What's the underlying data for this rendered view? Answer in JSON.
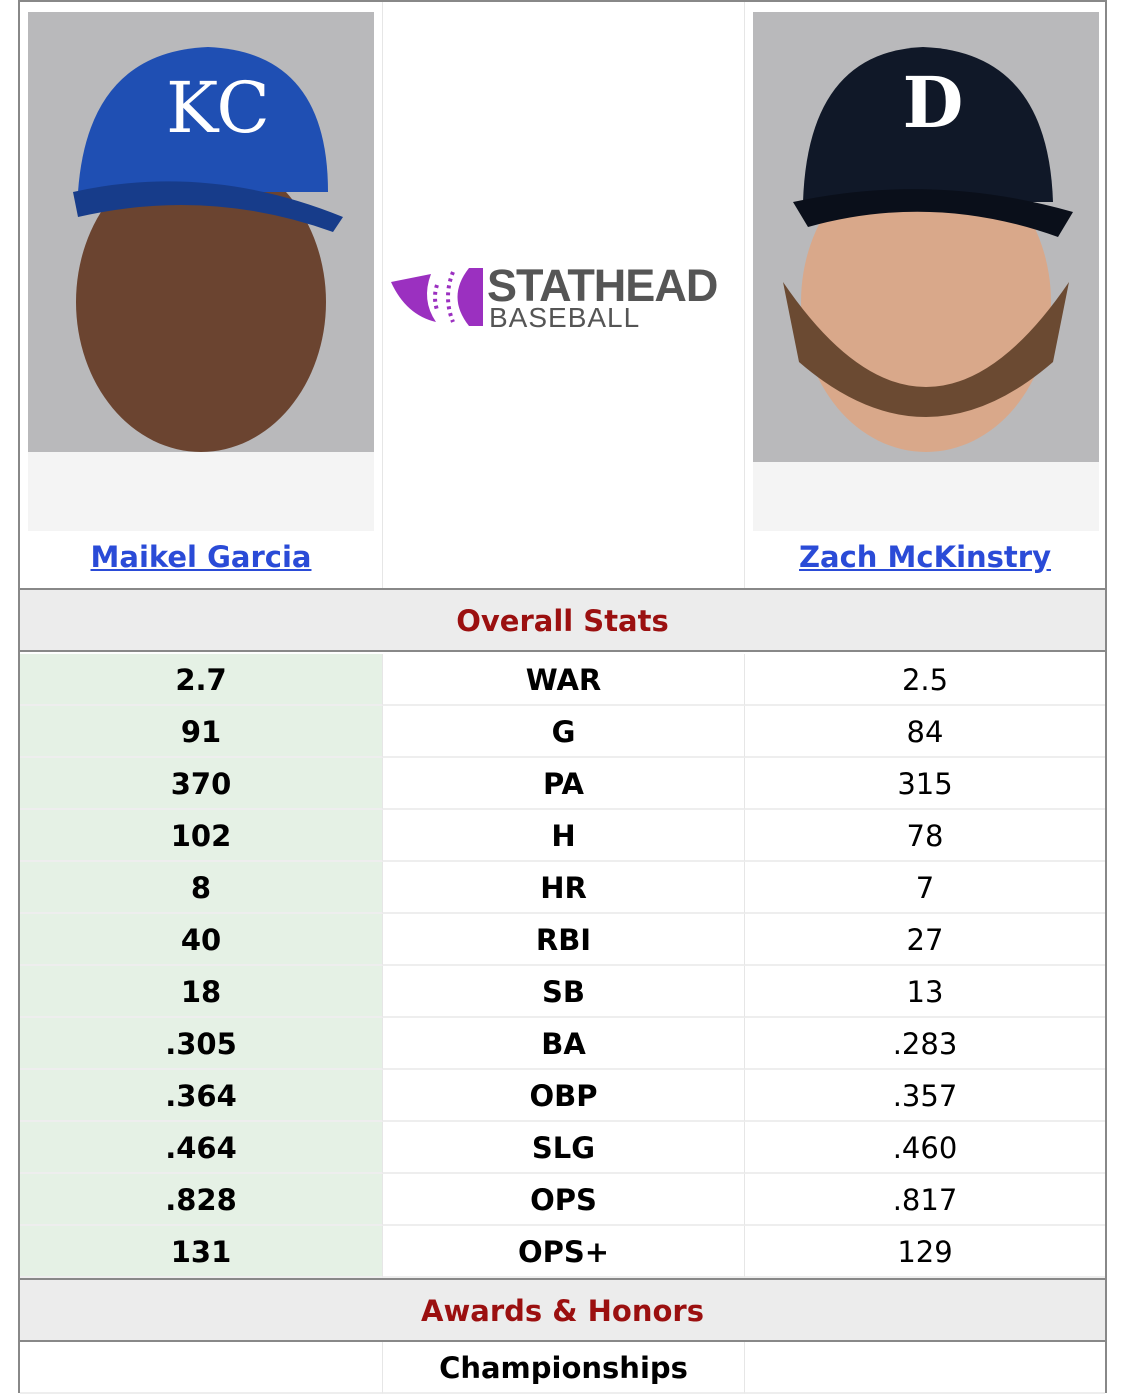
{
  "players": [
    {
      "name": "Maikel Garcia",
      "team_cap": "KC",
      "cap_color": "#1f4fb3"
    },
    {
      "name": "Zach McKinstry",
      "team_cap": "D",
      "cap_color": "#101828"
    }
  ],
  "logo": {
    "line1": "STATHEAD",
    "line2": "BASEBALL",
    "accent": "#9b30c0"
  },
  "sections": {
    "overall": "Overall Stats",
    "awards": "Awards & Honors"
  },
  "stats": [
    {
      "left": "2.7",
      "label": "WAR",
      "right": "2.5"
    },
    {
      "left": "91",
      "label": "G",
      "right": "84"
    },
    {
      "left": "370",
      "label": "PA",
      "right": "315"
    },
    {
      "left": "102",
      "label": "H",
      "right": "78"
    },
    {
      "left": "8",
      "label": "HR",
      "right": "7"
    },
    {
      "left": "40",
      "label": "RBI",
      "right": "27"
    },
    {
      "left": "18",
      "label": "SB",
      "right": "13"
    },
    {
      "left": ".305",
      "label": "BA",
      "right": ".283"
    },
    {
      "left": ".364",
      "label": "OBP",
      "right": ".357"
    },
    {
      "left": ".464",
      "label": "SLG",
      "right": ".460"
    },
    {
      "left": ".828",
      "label": "OPS",
      "right": ".817"
    },
    {
      "left": "131",
      "label": "OPS+",
      "right": "129"
    }
  ],
  "awards": [
    {
      "label": "Championships"
    }
  ]
}
